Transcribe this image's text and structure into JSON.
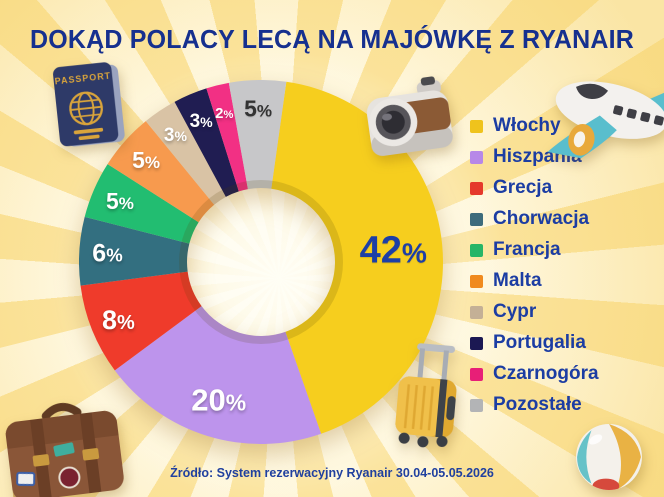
{
  "title": "DOKĄD POLACY LECĄ NA MAJÓWKĘ Z RYANAIR",
  "footer": "Źródło: System rezerwacyjny Ryanair 30.04-05.05.2026",
  "colors": {
    "background": "#FBE39B",
    "ray": "#FFF9E3",
    "center_glow": "#FFFEF6",
    "title_text": "#16308F",
    "legend_text": "#1C3DA3",
    "footer_text": "#20409F"
  },
  "chart_data": {
    "type": "pie",
    "style": "donut-3d",
    "unit": "%",
    "title": "DOKĄD POLACY LECĄ NA MAJÓWKĘ Z RYANAIR",
    "legend_position": "right",
    "start_angle_deg": 8,
    "slices": [
      {
        "label": "Włochy",
        "value": 42,
        "display": "42%",
        "color": "#F6CE1E",
        "legend_color": "#EFC31C",
        "label_color": "#1D3FA6"
      },
      {
        "label": "Hiszpania",
        "value": 20,
        "display": "20%",
        "color": "#BD94EC",
        "legend_color": "#B788E8",
        "label_color": "#FFFFFF"
      },
      {
        "label": "Grecja",
        "value": 8,
        "display": "8%",
        "color": "#EF3B2B",
        "legend_color": "#E5392B",
        "label_color": "#FFFFFF"
      },
      {
        "label": "Chorwacja",
        "value": 6,
        "display": "6%",
        "color": "#336F80",
        "legend_color": "#3E6C7C",
        "label_color": "#FFFFFF"
      },
      {
        "label": "Francja",
        "value": 5,
        "display": "5%",
        "color": "#22BD71",
        "legend_color": "#27B567",
        "label_color": "#FFFFFF"
      },
      {
        "label": "Malta",
        "value": 5,
        "display": "5%",
        "color": "#F79A4E",
        "legend_color": "#F08A1D",
        "label_color": "#FFFFFF"
      },
      {
        "label": "Cypr",
        "value": 3,
        "display": "3%",
        "color": "#D9C3A5",
        "legend_color": "#C4B096",
        "label_color": "#FFFFFF"
      },
      {
        "label": "Portugalia",
        "value": 3,
        "display": "3%",
        "color": "#201D52",
        "legend_color": "#1B1853",
        "label_color": "#FFFFFF"
      },
      {
        "label": "Czarnogóra",
        "value": 2,
        "display": "2%",
        "color": "#F23084",
        "legend_color": "#E81F77",
        "label_color": "#FFFFFF"
      },
      {
        "label": "Pozostałe",
        "value": 5,
        "display": "5%",
        "color": "#C7C7C9",
        "legend_color": "#B3B4B6",
        "label_color": "#333333"
      }
    ]
  },
  "decorations": {
    "passport_label": "PASSPORT",
    "icons": [
      "passport-icon",
      "camera-icon",
      "airplane-icon",
      "trolley-suitcase-icon",
      "travel-bag-icon",
      "beach-ball-icon"
    ]
  }
}
